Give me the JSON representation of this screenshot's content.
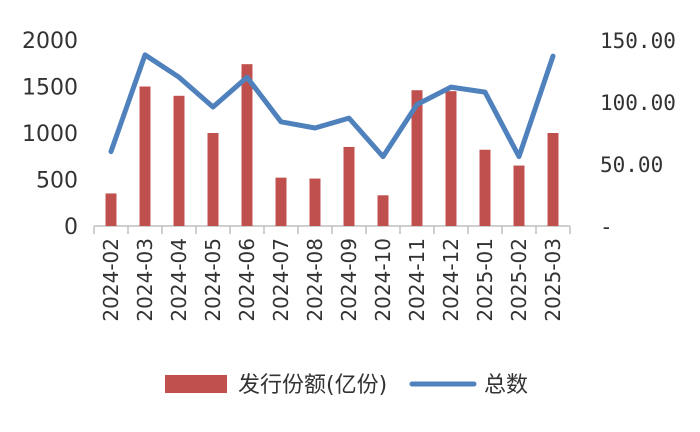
{
  "chart_data": {
    "type": "bar+line",
    "categories": [
      "2024-02",
      "2024-03",
      "2024-04",
      "2024-05",
      "2024-06",
      "2024-07",
      "2024-08",
      "2024-09",
      "2024-10",
      "2024-11",
      "2024-12",
      "2025-01",
      "2025-02",
      "2025-03"
    ],
    "series": [
      {
        "name": "发行份额(亿份)",
        "type": "bar",
        "axis": "left",
        "color": "#C0504D",
        "values": [
          350,
          1500,
          1400,
          1000,
          1740,
          520,
          510,
          850,
          330,
          1460,
          1450,
          820,
          650,
          1000
        ]
      },
      {
        "name": "总数",
        "type": "line",
        "axis": "right",
        "color": "#4F81BD",
        "values": [
          60,
          138,
          120,
          96,
          120,
          84,
          79,
          87,
          56,
          98,
          112,
          108,
          56,
          137
        ]
      }
    ],
    "y_left": {
      "range": [
        0,
        2000
      ],
      "ticks": [
        "0",
        "500",
        "1000",
        "1500",
        "2000"
      ]
    },
    "y_right": {
      "range": [
        0,
        150
      ],
      "ticks": [
        "-",
        "50.00",
        "100.00",
        "150.00"
      ]
    },
    "grid": false,
    "legend": "bottom"
  },
  "legend": {
    "bar_label": "发行份额(亿份)",
    "line_label": "总数"
  }
}
